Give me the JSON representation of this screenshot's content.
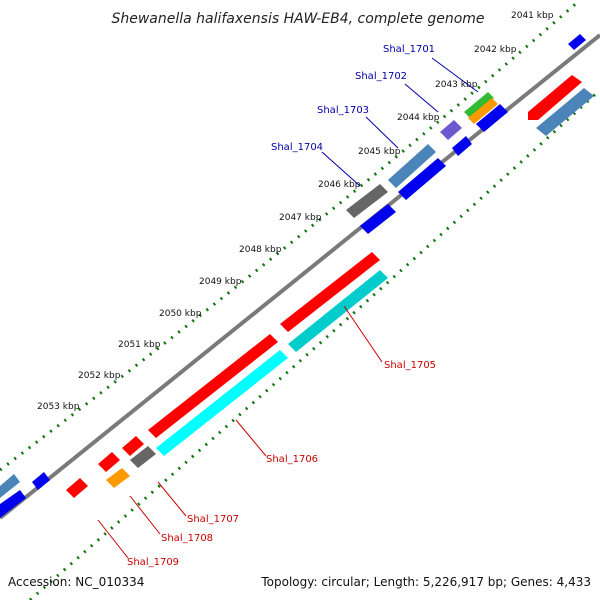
{
  "title": "Shewanella halifaxensis HAW-EB4, complete genome",
  "footer": {
    "accession": "Accession: NC_010334",
    "topology": "Topology: circular; Length: 5,226,917 bp; Genes: 4,433"
  },
  "kbp_labels": [
    "2041 kbp",
    "2042 kbp",
    "2043 kbp",
    "2044 kbp",
    "2045 kbp",
    "2046 kbp",
    "2047 kbp",
    "2048 kbp",
    "2049 kbp",
    "2050 kbp",
    "2051 kbp",
    "2052 kbp",
    "2053 kbp"
  ],
  "gene_labels_top": [
    "Shal_1701",
    "Shal_1702",
    "Shal_1703",
    "Shal_1704"
  ],
  "gene_labels_bottom": [
    "Shal_1705",
    "Shal_1706",
    "Shal_1707",
    "Shal_1708",
    "Shal_1709"
  ],
  "colors": {
    "label_blue": "#0000aa",
    "label_red": "#cc0000",
    "red": "#ff0000",
    "blue": "#0000ee",
    "steel": "#4a84b8",
    "cyan": "#00cccc",
    "gray": "#666666",
    "green": "#33bb33",
    "orange": "#ff9900",
    "purple": "#6a5acd",
    "tick_green": "#117711"
  }
}
